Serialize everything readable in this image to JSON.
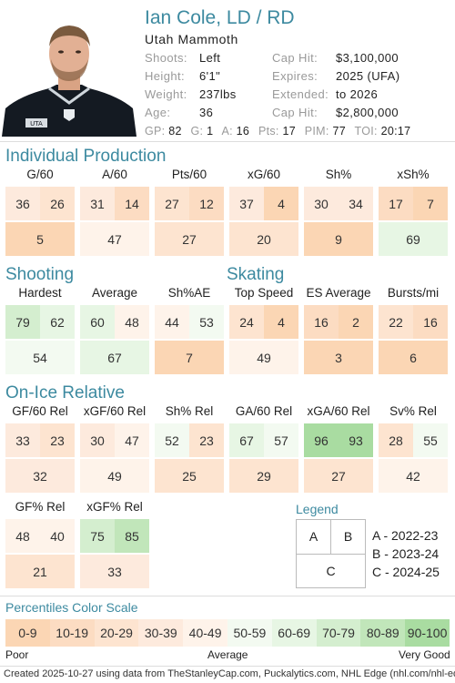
{
  "player": {
    "name": "Ian Cole, LD / RD",
    "team": "Utah Mammoth",
    "info_left": [
      {
        "label": "Shoots:",
        "value": "Left"
      },
      {
        "label": "Height:",
        "value": "6'1\""
      },
      {
        "label": "Weight:",
        "value": "237lbs"
      },
      {
        "label": "Age:",
        "value": "36"
      }
    ],
    "info_right": [
      {
        "label": "Cap Hit:",
        "value": "$3,100,000"
      },
      {
        "label": "Expires:",
        "value": "2025 (UFA)"
      },
      {
        "label": "Extended:",
        "value": "to 2026"
      },
      {
        "label": "Cap Hit:",
        "value": "$2,800,000"
      }
    ],
    "statline": [
      {
        "label": "GP:",
        "value": "82"
      },
      {
        "label": "G:",
        "value": "1"
      },
      {
        "label": "A:",
        "value": "16"
      },
      {
        "label": "Pts:",
        "value": "17"
      },
      {
        "label": "PIM:",
        "value": "77"
      },
      {
        "label": "TOI:",
        "value": "20:17"
      }
    ],
    "jersey_logo_text": "UTA"
  },
  "sections": {
    "individual": "Individual Production",
    "shooting": "Shooting",
    "skating": "Skating",
    "onice": "On-Ice Relative"
  },
  "metrics": {
    "g60": {
      "label": "G/60",
      "a": 36,
      "b": 26,
      "c": 5
    },
    "a60": {
      "label": "A/60",
      "a": 31,
      "b": 14,
      "c": 47
    },
    "pts60": {
      "label": "Pts/60",
      "a": 27,
      "b": 12,
      "c": 27
    },
    "xg60": {
      "label": "xG/60",
      "a": 37,
      "b": 4,
      "c": 20
    },
    "sh": {
      "label": "Sh%",
      "a": 30,
      "b": 34,
      "c": 9
    },
    "xsh": {
      "label": "xSh%",
      "a": 17,
      "b": 7,
      "c": 69
    },
    "hardest": {
      "label": "Hardest",
      "a": 79,
      "b": 62,
      "c": 54
    },
    "average": {
      "label": "Average",
      "a": 60,
      "b": 48,
      "c": 67
    },
    "shae": {
      "label": "Sh%AE",
      "a": 44,
      "b": 53,
      "c": 7
    },
    "topspeed": {
      "label": "Top Speed",
      "a": 24,
      "b": 4,
      "c": 49
    },
    "esavg": {
      "label": "ES Average",
      "a": 16,
      "b": 2,
      "c": 3
    },
    "bursts": {
      "label": "Bursts/mi",
      "a": 22,
      "b": 16,
      "c": 6
    },
    "gf60": {
      "label": "GF/60 Rel",
      "a": 33,
      "b": 23,
      "c": 32
    },
    "xgf60": {
      "label": "xGF/60 Rel",
      "a": 30,
      "b": 47,
      "c": 49
    },
    "shrel": {
      "label": "Sh% Rel",
      "a": 52,
      "b": 23,
      "c": 25
    },
    "ga60": {
      "label": "GA/60 Rel",
      "a": 67,
      "b": 57,
      "c": 29
    },
    "xga60": {
      "label": "xGA/60 Rel",
      "a": 96,
      "b": 93,
      "c": 27
    },
    "svrel": {
      "label": "Sv% Rel",
      "a": 28,
      "b": 55,
      "c": 42
    },
    "gfpct": {
      "label": "GF% Rel",
      "a": 48,
      "b": 40,
      "c": 21
    },
    "xgfpct": {
      "label": "xGF% Rel",
      "a": 75,
      "b": 85,
      "c": 33
    }
  },
  "legend": {
    "title": "Legend",
    "a": "A",
    "b": "B",
    "c": "C",
    "a_text": "A - 2022-23",
    "b_text": "B - 2023-24",
    "c_text": "C - 2024-25"
  },
  "percentiles": {
    "title": "Percentiles Color Scale",
    "bins": [
      "0-9",
      "10-19",
      "20-29",
      "30-39",
      "40-49",
      "50-59",
      "60-69",
      "70-79",
      "80-89",
      "90-100"
    ],
    "colors": [
      "#fbd6b4",
      "#fcdcc2",
      "#fde4d0",
      "#fdeadd",
      "#fef3ea",
      "#f3faf1",
      "#e7f6e4",
      "#d4eecf",
      "#c1e6ba",
      "#a9dca1"
    ],
    "poor": "Poor",
    "average": "Average",
    "very_good": "Very Good"
  },
  "footer": "Created 2025-10-27 using data from TheStanleyCap.com, Puckalytics.com, NHL Edge (nhl.com/nhl-edge)."
}
